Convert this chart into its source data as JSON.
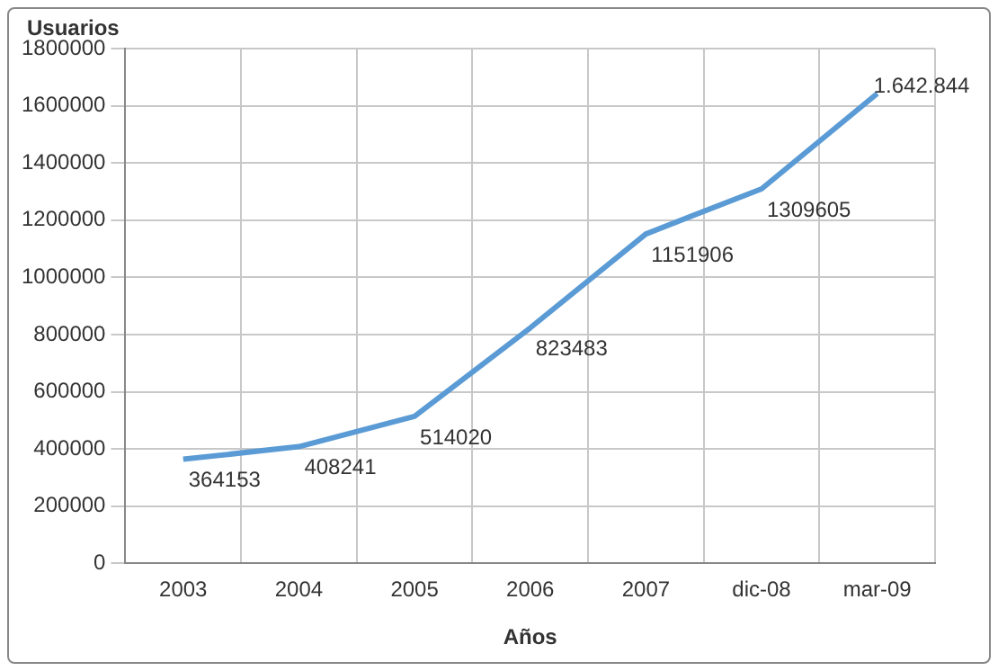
{
  "chart_data": {
    "type": "line",
    "xlabel": "Años",
    "ylabel": "Usuarios",
    "categories": [
      "2003",
      "2004",
      "2005",
      "2006",
      "2007",
      "dic-08",
      "mar-09"
    ],
    "series": [
      {
        "color": "#5b9bd5",
        "values": [
          364153,
          408241,
          514020,
          823483,
          1151906,
          1309605,
          1642844
        ],
        "value_labels": [
          "364153",
          "408241",
          "514020",
          "823483",
          "1151906",
          "1309605",
          "1.642.844"
        ]
      }
    ],
    "ylim": [
      0,
      1800000
    ],
    "yticks": [
      0,
      200000,
      400000,
      600000,
      800000,
      1000000,
      1200000,
      1400000,
      1600000,
      1800000
    ],
    "grid": true,
    "marker": "none",
    "line_style": "solid"
  }
}
